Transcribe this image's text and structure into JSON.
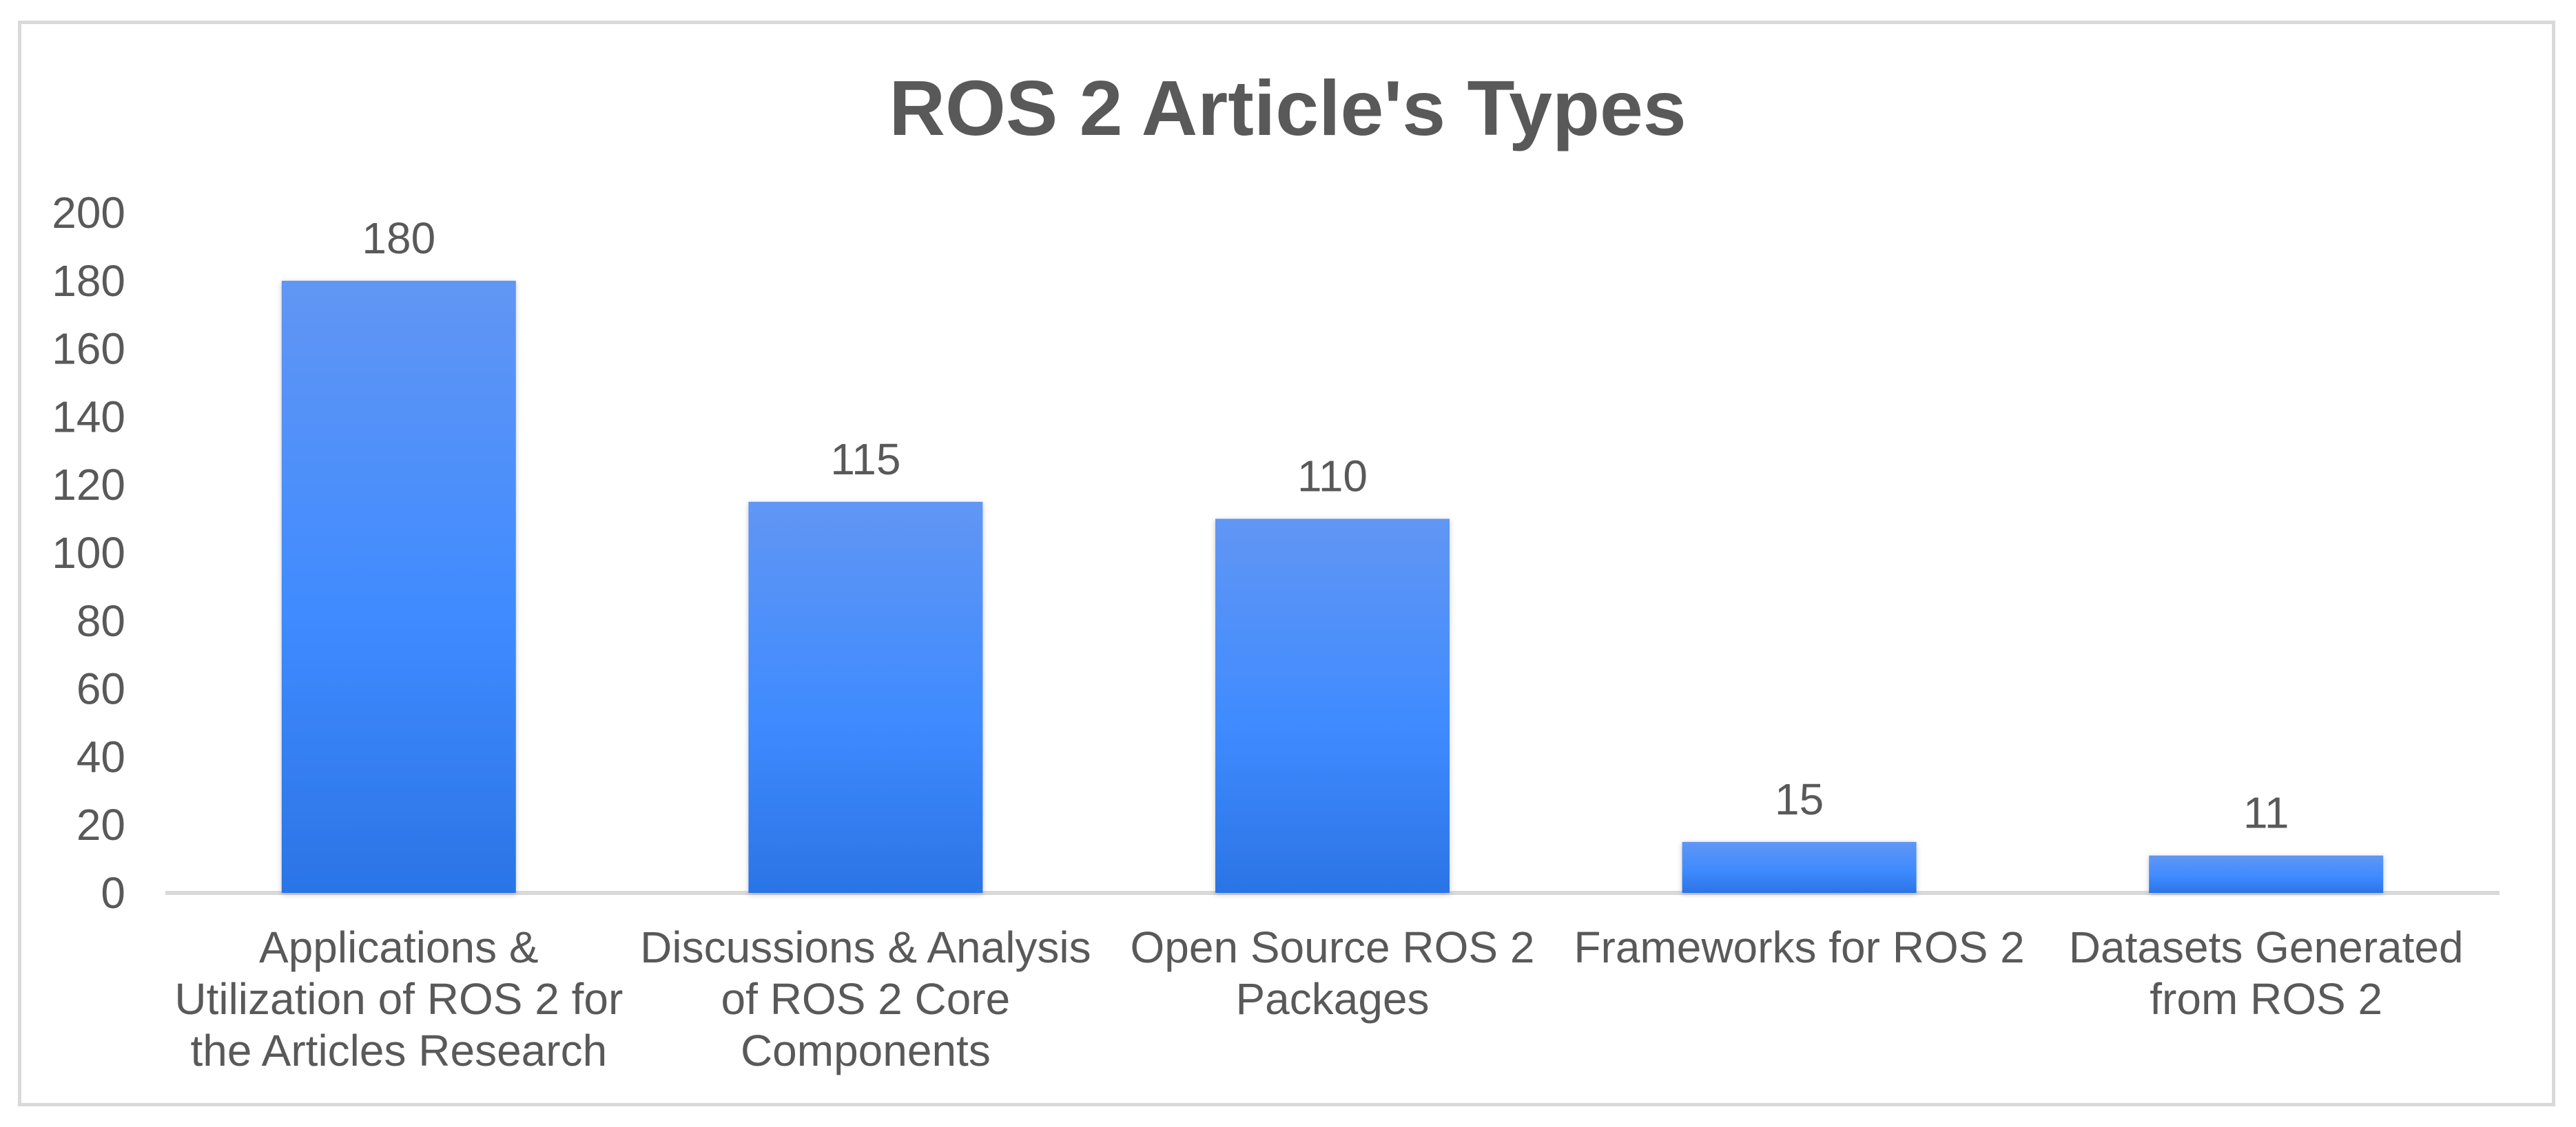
{
  "chart_data": {
    "type": "bar",
    "title": "ROS 2 Article's Types",
    "categories": [
      [
        "Applications &",
        "Utilization of ROS 2 for",
        "the Articles Research"
      ],
      [
        "Discussions & Analysis",
        "of ROS 2 Core",
        "Components"
      ],
      [
        "Open Source ROS 2",
        "Packages"
      ],
      [
        "Frameworks for ROS 2"
      ],
      [
        "Datasets Generated",
        "from ROS 2"
      ]
    ],
    "values": [
      180,
      115,
      110,
      15,
      11
    ],
    "ylim": [
      0,
      200
    ],
    "yticks": [
      0,
      20,
      40,
      60,
      80,
      100,
      120,
      140,
      160,
      180,
      200
    ],
    "xlabel": "",
    "ylabel": "",
    "grid": false,
    "legend": "none",
    "colors": {
      "bar_top": "#6196f4",
      "bar_mid": "#3f8bff",
      "bar_bottom": "#2b74e6",
      "text": "#595959",
      "axis": "#d9d9d9",
      "frame": "#d9d9d9"
    }
  }
}
